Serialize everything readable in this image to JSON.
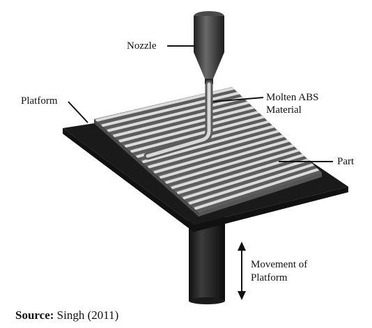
{
  "labels": {
    "nozzle": "Nozzle",
    "platform": "Platform",
    "molten_line1": "Molten ABS",
    "molten_line2": "Material",
    "part": "Part",
    "movement_line1": "Movement of",
    "movement_line2": "Platform"
  },
  "caption": {
    "prefix": "Source:",
    "text": "Singh (2011)"
  },
  "colors": {
    "platform": "#1a1a1a",
    "filament_light": "#d6d6d6",
    "filament_dark": "#6e6e6e",
    "nozzle": "#3a3a3a"
  }
}
